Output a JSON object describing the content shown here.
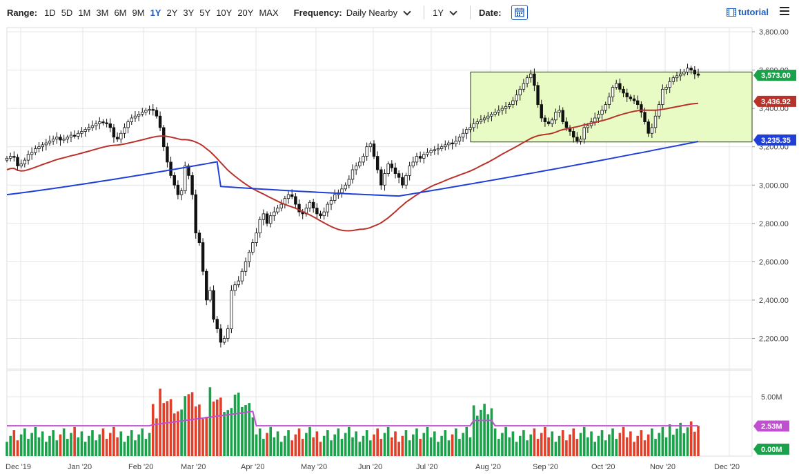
{
  "toolbar": {
    "range_label": "Range:",
    "ranges": [
      "1D",
      "5D",
      "1M",
      "3M",
      "6M",
      "9M",
      "1Y",
      "2Y",
      "3Y",
      "5Y",
      "10Y",
      "20Y",
      "MAX"
    ],
    "active_range": "1Y",
    "frequency_label": "Frequency:",
    "frequency_value": "Daily Nearby",
    "period_value": "1Y",
    "date_label": "Date:",
    "tutorial_label": "tutorial"
  },
  "colors": {
    "up": "#1aa24a",
    "down": "#e0402a",
    "ma50": "#b8322a",
    "ma200": "#1f3fd8",
    "avgvol": "#c050d0",
    "box_fill": "#e8fbc4",
    "box_stroke": "#2a3a1a"
  },
  "chart_data": {
    "type": "candlestick",
    "price_axis": {
      "min": 2100,
      "max": 3800,
      "ticks": [
        "3,800.00",
        "3,600.00",
        "3,400.00",
        "3,200.00",
        "3,000.00",
        "2,800.00",
        "2,600.00",
        "2,400.00",
        "2,200.00"
      ],
      "tick_values": [
        3800,
        3600,
        3400,
        3200,
        3000,
        2800,
        2600,
        2400,
        2200
      ]
    },
    "volume_axis": {
      "ticks": [
        "5.00M"
      ],
      "tick_values": [
        5.0
      ]
    },
    "x_labels": [
      "Dec '19",
      "Jan '20",
      "Feb '20",
      "Mar '20",
      "Apr '20",
      "May '20",
      "Jun '20",
      "Jul '20",
      "Aug '20",
      "Sep '20",
      "Oct '20",
      "Nov '20",
      "Dec '20"
    ],
    "price_tags": [
      {
        "label": "3,573.00",
        "value": 3573.0,
        "color": "#1aa24a"
      },
      {
        "label": "3,436.92",
        "value": 3436.92,
        "color": "#b8322a"
      },
      {
        "label": "3,235.35",
        "value": 3235.35,
        "color": "#1f3fd8"
      }
    ],
    "volume_tags": [
      {
        "label": "2.53M",
        "value": 2.53,
        "color": "#c050d0"
      },
      {
        "label": "0.00M",
        "value": 0.0,
        "color": "#1aa24a"
      }
    ],
    "box": {
      "x_start_label": "Jul '20",
      "top": 3590,
      "bottom": 3225
    },
    "close_series": [
      3140,
      3150,
      3145,
      3100,
      3110,
      3130,
      3160,
      3170,
      3190,
      3200,
      3210,
      3220,
      3230,
      3240,
      3250,
      3235,
      3240,
      3250,
      3260,
      3255,
      3270,
      3280,
      3290,
      3300,
      3310,
      3320,
      3330,
      3325,
      3320,
      3300,
      3250,
      3240,
      3270,
      3300,
      3330,
      3350,
      3360,
      3370,
      3380,
      3390,
      3395,
      3390,
      3360,
      3300,
      3200,
      3120,
      3050,
      3000,
      2950,
      2970,
      3100,
      3050,
      2950,
      2750,
      2700,
      2550,
      2400,
      2450,
      2300,
      2250,
      2180,
      2200,
      2250,
      2450,
      2480,
      2500,
      2550,
      2600,
      2650,
      2700,
      2750,
      2820,
      2850,
      2800,
      2840,
      2860,
      2880,
      2900,
      2930,
      2950,
      2940,
      2900,
      2860,
      2850,
      2880,
      2910,
      2880,
      2850,
      2840,
      2860,
      2900,
      2920,
      2950,
      2960,
      2980,
      3000,
      3030,
      3080,
      3100,
      3120,
      3150,
      3200,
      3215,
      3150,
      3080,
      3000,
      3060,
      3110,
      3090,
      3060,
      3040,
      3000,
      3050,
      3100,
      3120,
      3150,
      3140,
      3160,
      3170,
      3180,
      3185,
      3190,
      3200,
      3210,
      3220,
      3215,
      3230,
      3250,
      3270,
      3290,
      3300,
      3320,
      3330,
      3340,
      3350,
      3360,
      3370,
      3380,
      3390,
      3400,
      3410,
      3420,
      3440,
      3470,
      3500,
      3530,
      3560,
      3580,
      3520,
      3420,
      3350,
      3330,
      3320,
      3340,
      3380,
      3390,
      3330,
      3300,
      3280,
      3250,
      3230,
      3240,
      3300,
      3310,
      3330,
      3350,
      3370,
      3390,
      3420,
      3460,
      3510,
      3530,
      3500,
      3480,
      3460,
      3450,
      3440,
      3420,
      3380,
      3330,
      3270,
      3300,
      3360,
      3420,
      3500,
      3510,
      3540,
      3560,
      3570,
      3580,
      3590,
      3610,
      3600,
      3580,
      3573
    ]
  }
}
